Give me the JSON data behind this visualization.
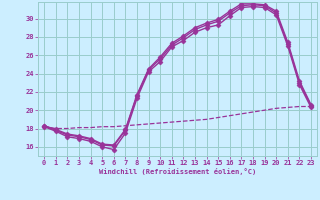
{
  "background_color": "#cceeff",
  "line_color": "#993399",
  "grid_color": "#99cccc",
  "xlabel": "Windchill (Refroidissement éolien,°C)",
  "xlim": [
    -0.5,
    23.5
  ],
  "ylim": [
    15.0,
    31.8
  ],
  "yticks": [
    16,
    18,
    20,
    22,
    24,
    26,
    28,
    30
  ],
  "xticks": [
    0,
    1,
    2,
    3,
    4,
    5,
    6,
    7,
    8,
    9,
    10,
    11,
    12,
    13,
    14,
    15,
    16,
    17,
    18,
    19,
    20,
    21,
    22,
    23
  ],
  "series": [
    {
      "x": [
        0,
        1,
        2,
        3,
        4,
        5,
        6,
        7,
        8,
        9,
        10,
        11,
        12,
        13,
        14,
        15,
        16,
        17,
        18,
        19,
        20,
        21,
        22,
        23
      ],
      "y": [
        18.2,
        17.7,
        17.1,
        16.9,
        16.6,
        16.0,
        15.7,
        17.5,
        21.3,
        24.2,
        25.3,
        26.9,
        27.6,
        28.5,
        29.0,
        29.3,
        30.3,
        31.2,
        31.3,
        31.2,
        30.4,
        27.0,
        22.8,
        20.3
      ],
      "marker": "D",
      "markersize": 2.5,
      "linewidth": 1.0,
      "linestyle": "-"
    },
    {
      "x": [
        0,
        1,
        2,
        3,
        4,
        5,
        6,
        7,
        8,
        9,
        10,
        11,
        12,
        13,
        14,
        15,
        16,
        17,
        18,
        19,
        20,
        21,
        22,
        23
      ],
      "y": [
        18.3,
        17.8,
        17.3,
        17.1,
        16.8,
        16.2,
        16.1,
        17.8,
        21.6,
        24.4,
        25.6,
        27.1,
        27.9,
        28.8,
        29.3,
        29.7,
        30.6,
        31.4,
        31.5,
        31.4,
        30.6,
        27.2,
        23.0,
        20.5
      ],
      "marker": "D",
      "markersize": 2.5,
      "linewidth": 1.0,
      "linestyle": "-"
    },
    {
      "x": [
        0,
        1,
        2,
        3,
        4,
        5,
        6,
        7,
        8,
        9,
        10,
        11,
        12,
        13,
        14,
        15,
        16,
        17,
        18,
        19,
        20,
        21,
        22,
        23
      ],
      "y": [
        18.3,
        17.9,
        17.4,
        17.2,
        16.9,
        16.3,
        16.2,
        17.9,
        21.7,
        24.5,
        25.8,
        27.3,
        28.1,
        29.0,
        29.5,
        29.9,
        30.8,
        31.6,
        31.6,
        31.5,
        30.8,
        27.4,
        23.2,
        20.6
      ],
      "marker": "D",
      "markersize": 2.5,
      "linewidth": 1.0,
      "linestyle": "-"
    },
    {
      "x": [
        0,
        1,
        2,
        3,
        4,
        5,
        6,
        7,
        8,
        9,
        10,
        11,
        12,
        13,
        14,
        15,
        16,
        17,
        18,
        19,
        20,
        21,
        22,
        23
      ],
      "y": [
        18.2,
        18.0,
        18.0,
        18.1,
        18.1,
        18.2,
        18.2,
        18.3,
        18.4,
        18.5,
        18.6,
        18.7,
        18.8,
        18.9,
        19.0,
        19.2,
        19.4,
        19.6,
        19.8,
        20.0,
        20.2,
        20.3,
        20.4,
        20.4
      ],
      "marker": null,
      "markersize": 0,
      "linewidth": 0.9,
      "linestyle": "--"
    }
  ]
}
